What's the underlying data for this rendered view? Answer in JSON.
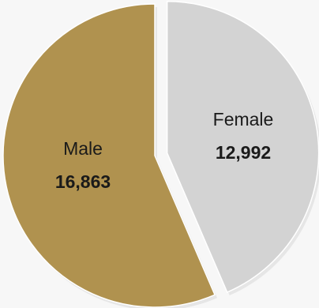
{
  "chart_data": {
    "type": "pie",
    "title": "",
    "categories": [
      "Male",
      "Female"
    ],
    "values": [
      16863,
      12992
    ],
    "value_labels": [
      "16,863",
      "12,992"
    ],
    "colors": [
      "#b0924f",
      "#d3d3d3"
    ],
    "exploded": [
      "Female"
    ],
    "legend": "none",
    "start_angle_deg": 0,
    "direction": "clockwise"
  },
  "background_color": "#f7f7f7",
  "shadow_color": "#e6e6e6"
}
